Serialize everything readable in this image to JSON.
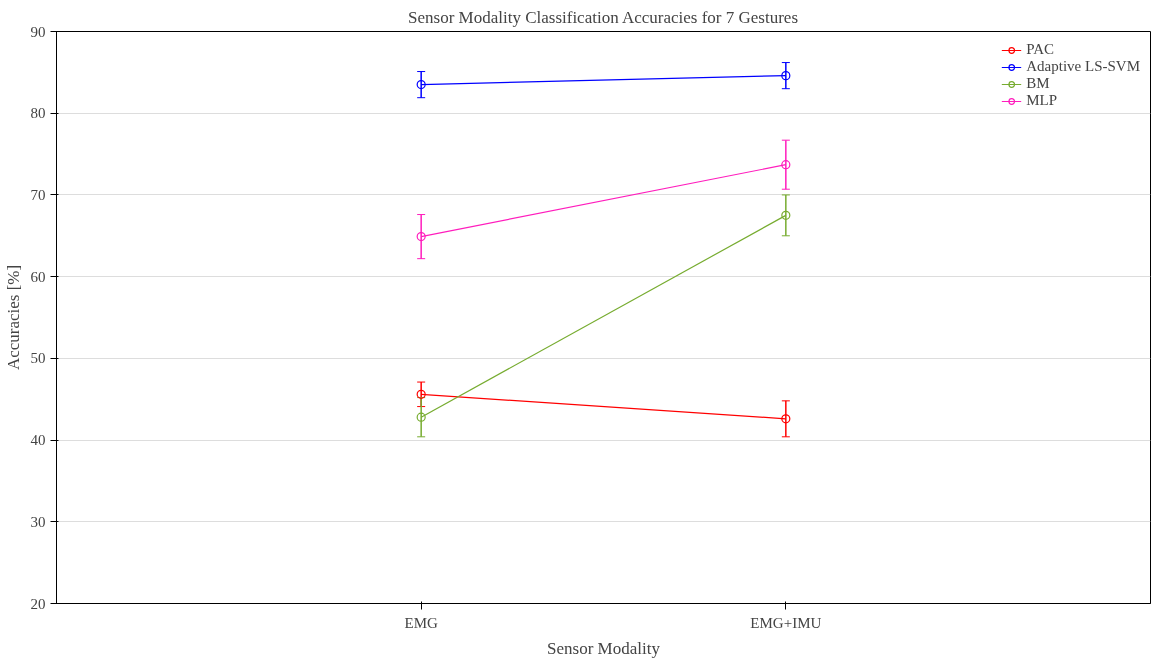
{
  "chart_data": {
    "type": "line",
    "title": "Sensor Modality Classification Accuracies for 7 Gestures",
    "xlabel": "Sensor Modality",
    "ylabel": "Accuracies [%]",
    "categories": [
      "EMG",
      "EMG+IMU"
    ],
    "series": [
      {
        "name": "PAC",
        "color": "#ff0000",
        "values": [
          45.6,
          42.6
        ],
        "errors": [
          1.5,
          2.2
        ]
      },
      {
        "name": "Adaptive LS-SVM",
        "color": "#0000ff",
        "values": [
          83.5,
          84.6
        ],
        "errors": [
          1.6,
          1.6
        ]
      },
      {
        "name": "BM",
        "color": "#77ac30",
        "values": [
          42.8,
          67.5
        ],
        "errors": [
          2.4,
          2.5
        ]
      },
      {
        "name": "MLP",
        "color": "#ff1dbd",
        "values": [
          64.9,
          73.7
        ],
        "errors": [
          2.7,
          3.0
        ]
      }
    ],
    "ylim": [
      20,
      90
    ],
    "yticks": [
      20,
      30,
      40,
      50,
      60,
      70,
      80,
      90
    ],
    "grid": "y",
    "legend": "top right",
    "marker": "circle",
    "line_style": "solid"
  }
}
